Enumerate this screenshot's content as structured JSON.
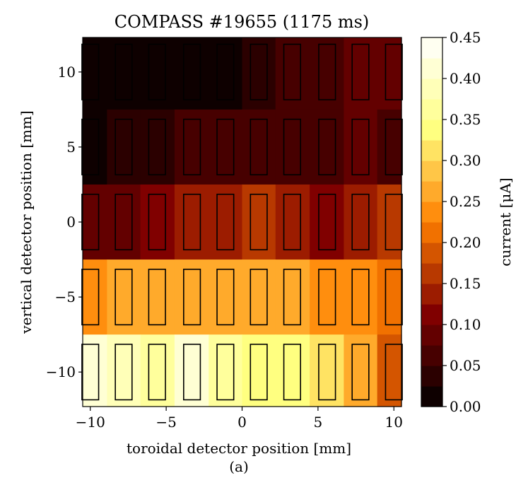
{
  "chart_data": {
    "type": "heatmap",
    "subtype": "filled contour with detector grid",
    "title": "COMPASS #19655 (1175 ms)",
    "xlabel": "toroidal detector position [mm]",
    "ylabel": "vertical detector position [mm]",
    "caption": "(a)",
    "xlim": [
      -10.5,
      10.5
    ],
    "ylim": [
      -12.3,
      12.3
    ],
    "xticks": [
      -10,
      -5,
      0,
      5,
      10
    ],
    "xtick_labels": [
      "−10",
      "−5",
      "0",
      "5",
      "10"
    ],
    "yticks": [
      10,
      5,
      0,
      -5,
      -10
    ],
    "ytick_labels": [
      "10",
      "5",
      "0",
      "−5",
      "−10"
    ],
    "detector_columns_x": [
      -10,
      -7.8,
      -5.6,
      -3.3,
      -1.1,
      1.1,
      3.3,
      5.6,
      7.8,
      10
    ],
    "detector_rows_y": [
      10,
      5,
      0,
      -5,
      -10
    ],
    "detector_size": [
      1.1,
      3.7
    ],
    "values": [
      [
        0.003,
        0.005,
        0.007,
        0.01,
        0.02,
        0.04,
        0.055,
        0.065,
        0.075,
        0.09
      ],
      [
        0.02,
        0.025,
        0.04,
        0.055,
        0.055,
        0.06,
        0.07,
        0.07,
        0.08,
        0.06
      ],
      [
        0.08,
        0.09,
        0.11,
        0.13,
        0.14,
        0.15,
        0.14,
        0.12,
        0.13,
        0.16
      ],
      [
        0.24,
        0.25,
        0.255,
        0.25,
        0.26,
        0.25,
        0.26,
        0.23,
        0.23,
        0.21
      ],
      [
        0.42,
        0.39,
        0.37,
        0.42,
        0.37,
        0.33,
        0.34,
        0.3,
        0.26,
        0.18
      ]
    ],
    "colorbar": {
      "label": "current [μA]",
      "min": 0.0,
      "max": 0.45,
      "levels": [
        0.0,
        0.025,
        0.05,
        0.075,
        0.1,
        0.125,
        0.15,
        0.175,
        0.2,
        0.225,
        0.25,
        0.275,
        0.3,
        0.325,
        0.35,
        0.375,
        0.4,
        0.425,
        0.45
      ],
      "ticks": [
        0.0,
        0.05,
        0.1,
        0.15,
        0.2,
        0.25,
        0.3,
        0.35,
        0.4,
        0.45
      ],
      "tick_labels": [
        "0.00",
        "0.05",
        "0.10",
        "0.15",
        "0.20",
        "0.25",
        "0.30",
        "0.35",
        "0.40",
        "0.45"
      ],
      "colormap": "afmhot"
    }
  }
}
